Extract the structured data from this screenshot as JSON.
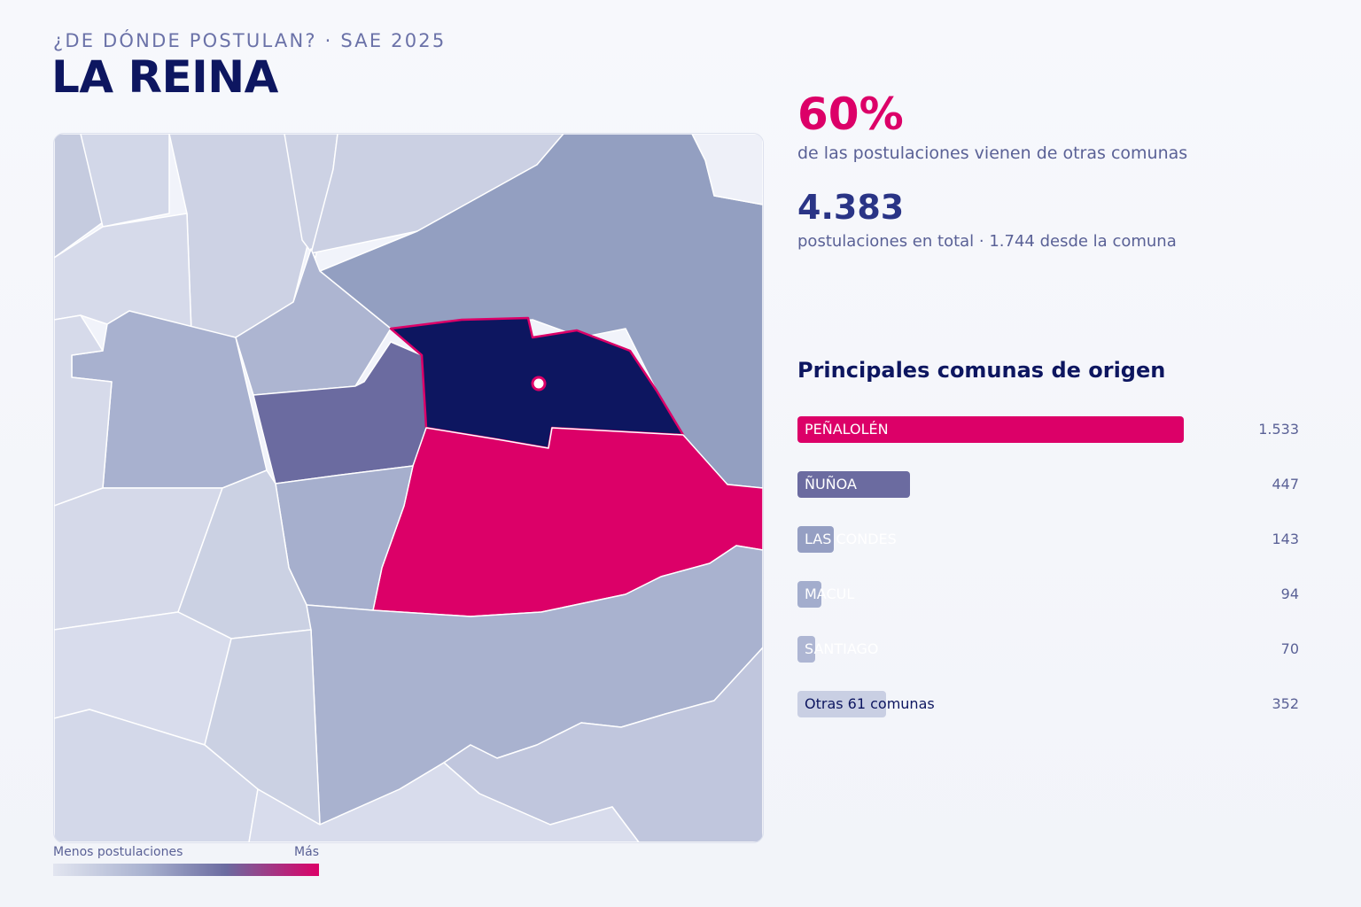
{
  "header": {
    "kicker": "¿DE DÓNDE POSTULAN? · SAE 2025",
    "title": "LA REINA"
  },
  "stats": {
    "external_pct": "60%",
    "external_desc": "de las postulaciones vienen de otras comunas",
    "total": "4.383",
    "total_desc": "postulaciones en total · 1.744 desde la comuna"
  },
  "list": {
    "title": "Principales comunas de origen",
    "items": [
      {
        "label": "PEÑALOLÉN",
        "value": "1.533",
        "fraction": 1.0,
        "color": "#dc0068",
        "label_style": "light"
      },
      {
        "label": "ÑUÑOA",
        "value": "447",
        "fraction": 0.292,
        "color": "#6b6ba0",
        "label_style": "light"
      },
      {
        "label": "LAS CONDES",
        "value": "143",
        "fraction": 0.093,
        "color": "#959fc3",
        "label_style": "light"
      },
      {
        "label": "MACUL",
        "value": "94",
        "fraction": 0.061,
        "color": "#a3adcd",
        "label_style": "light"
      },
      {
        "label": "SANTIAGO",
        "value": "70",
        "fraction": 0.046,
        "color": "#aeb6d3",
        "label_style": "light"
      },
      {
        "label": "Otras 61 comunas",
        "value": "352",
        "fraction": 0.23,
        "color": "#c9cfe3",
        "label_style": "dark"
      }
    ]
  },
  "legend": {
    "min_label": "Menos postulaciones",
    "max_label": "Más"
  },
  "colors": {
    "target": "#0d1660",
    "highest": "#dc0068",
    "high": "#6b6ba0",
    "mid": "#939fc1",
    "low": "#aab3d0",
    "lowest": "#d6daea"
  }
}
